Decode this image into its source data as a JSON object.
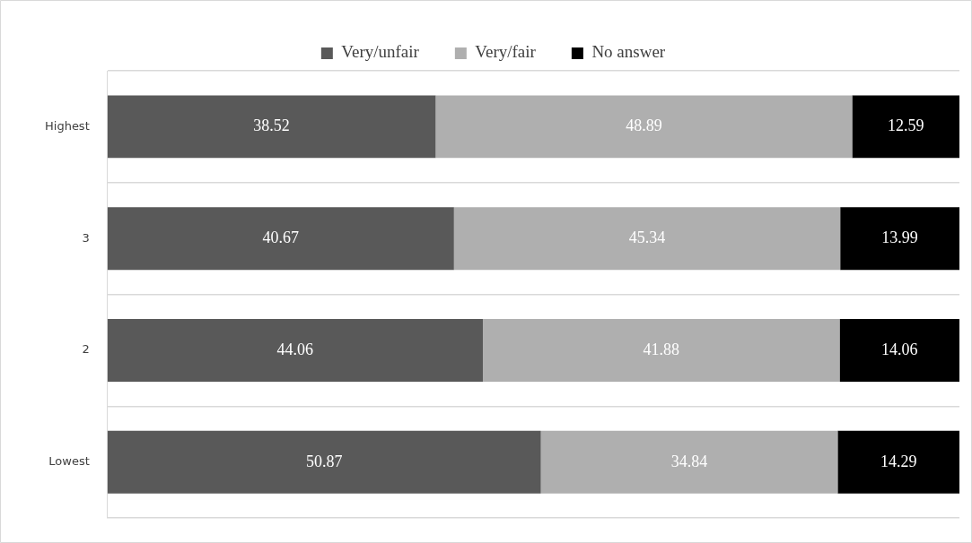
{
  "chart_data": {
    "type": "bar",
    "orientation": "horizontal",
    "stacked": true,
    "categories": [
      "Highest",
      "3",
      "2",
      "Lowest"
    ],
    "series": [
      {
        "name": "Very/unfair",
        "color": "#595959",
        "values": [
          38.52,
          40.67,
          44.06,
          50.87
        ]
      },
      {
        "name": "Very/fair",
        "color": "#afafaf",
        "values": [
          48.89,
          45.34,
          41.88,
          34.84
        ]
      },
      {
        "name": "No answer",
        "color": "#000000",
        "values": [
          12.59,
          13.99,
          14.06,
          14.29
        ]
      }
    ],
    "xlim": [
      0,
      100
    ],
    "tick_labels": "y",
    "grid": "y",
    "legend": "top",
    "data_labels": true
  }
}
